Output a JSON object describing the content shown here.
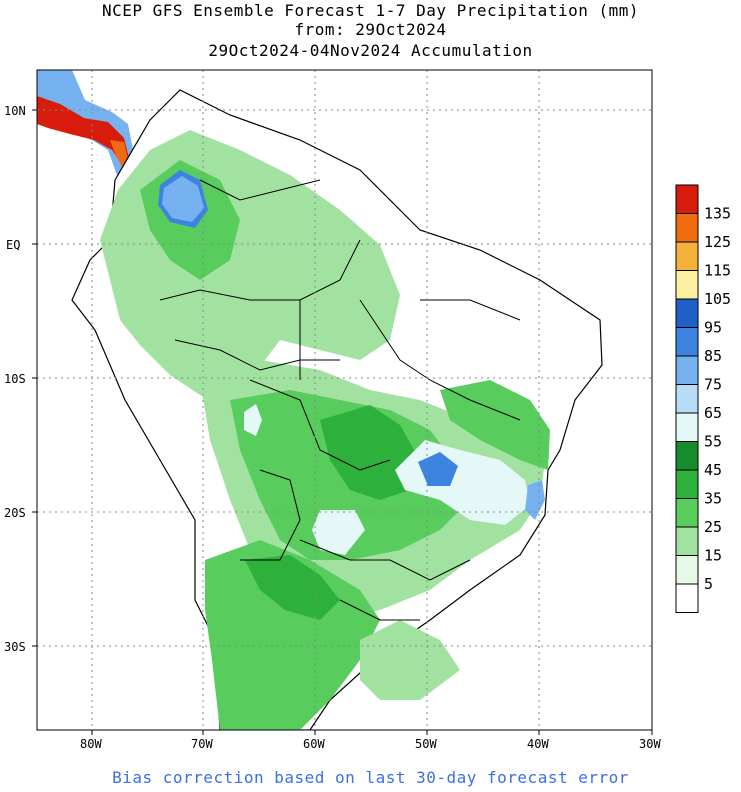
{
  "title_line1": "NCEP GFS Ensemble Forecast 1-7 Day Precipitation (mm)",
  "title_line2": "from: 29Oct2024",
  "title_line3": "29Oct2024-04Nov2024 Accumulation",
  "footer": "Bias correction based on last 30-day forecast error",
  "map": {
    "lat_labels": [
      "10N",
      "EQ",
      "10S",
      "20S",
      "30S"
    ],
    "lon_labels": [
      "80W",
      "70W",
      "60W",
      "50W",
      "40W",
      "30W"
    ]
  },
  "legend": {
    "labels": [
      "135",
      "125",
      "115",
      "105",
      "95",
      "85",
      "75",
      "65",
      "55",
      "45",
      "35",
      "25",
      "15",
      "5"
    ],
    "colors": [
      "#d81c0c",
      "#f06a10",
      "#f4b23a",
      "#fbf0a0",
      "#1e5fc8",
      "#3c84e0",
      "#76b2f0",
      "#b6dcf8",
      "#e4f8f8",
      "#168c2e",
      "#2eb03c",
      "#58cc5c",
      "#a2e2a0",
      "#e6f8e6",
      "#ffffff"
    ]
  }
}
